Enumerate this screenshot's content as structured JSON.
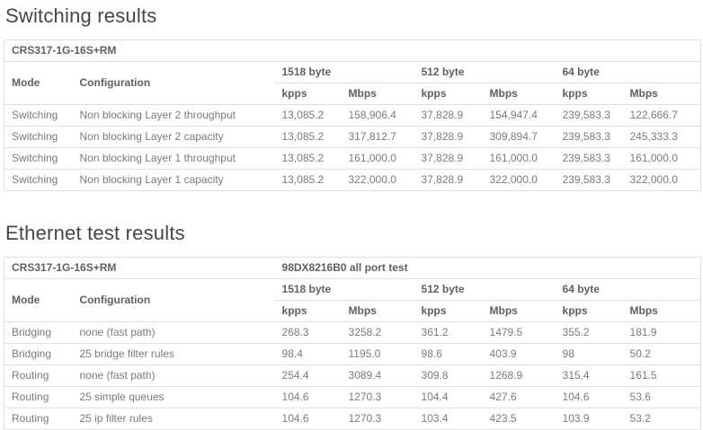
{
  "colors": {
    "heading_text": "#45454e",
    "table_header_text": "#606060",
    "table_body_text": "#7b7b7b",
    "table_border": "#e2e2e2",
    "background": "#ffffff"
  },
  "sections": [
    {
      "title": "Switching results",
      "device": "CRS317-1G-16S+RM",
      "mode_header": "Mode",
      "config_header": "Configuration",
      "frame_groups": [
        "1518 byte",
        "512 byte",
        "64 byte"
      ],
      "units": [
        "kpps",
        "Mbps",
        "kpps",
        "Mbps",
        "kpps",
        "Mbps"
      ],
      "rows": [
        {
          "mode": "Switching",
          "config": "Non blocking Layer 2 throughput",
          "v": [
            "13,085.2",
            "158,906.4",
            "37,828.9",
            "154,947.4",
            "239,583.3",
            "122,666.7"
          ]
        },
        {
          "mode": "Switching",
          "config": "Non blocking Layer 2 capacity",
          "v": [
            "13,085.2",
            "317,812.7",
            "37,828.9",
            "309,894.7",
            "239,583.3",
            "245,333.3"
          ]
        },
        {
          "mode": "Switching",
          "config": "Non blocking Layer 1 throughput",
          "v": [
            "13,085.2",
            "161,000.0",
            "37,828.9",
            "161,000.0",
            "239,583.3",
            "161,000.0"
          ]
        },
        {
          "mode": "Switching",
          "config": "Non blocking Layer 1 capacity",
          "v": [
            "13,085.2",
            "322,000.0",
            "37,828.9",
            "322,000.0",
            "239,583.3",
            "322,000.0"
          ]
        }
      ]
    },
    {
      "title": "Ethernet test results",
      "device": "CRS317-1G-16S+RM",
      "test_title": "98DX8216B0 all port test",
      "mode_header": "Mode",
      "config_header": "Configuration",
      "frame_groups": [
        "1518 byte",
        "512 byte",
        "64 byte"
      ],
      "units": [
        "kpps",
        "Mbps",
        "kpps",
        "Mbps",
        "kpps",
        "Mbps"
      ],
      "rows": [
        {
          "mode": "Bridging",
          "config": "none (fast path)",
          "v": [
            "268.3",
            "3258.2",
            "361.2",
            "1479.5",
            "355.2",
            "181.9"
          ]
        },
        {
          "mode": "Bridging",
          "config": "25 bridge filter rules",
          "v": [
            "98.4",
            "1195.0",
            "98.6",
            "403.9",
            "98",
            "50.2"
          ]
        },
        {
          "mode": "Routing",
          "config": "none (fast path)",
          "v": [
            "254.4",
            "3089.4",
            "309.8",
            "1268.9",
            "315.4",
            "161.5"
          ]
        },
        {
          "mode": "Routing",
          "config": "25 simple queues",
          "v": [
            "104.6",
            "1270.3",
            "104.4",
            "427.6",
            "104.6",
            "53.6"
          ]
        },
        {
          "mode": "Routing",
          "config": "25 ip filter rules",
          "v": [
            "104.6",
            "1270.3",
            "103.4",
            "423.5",
            "103.9",
            "53.2"
          ]
        }
      ]
    }
  ]
}
